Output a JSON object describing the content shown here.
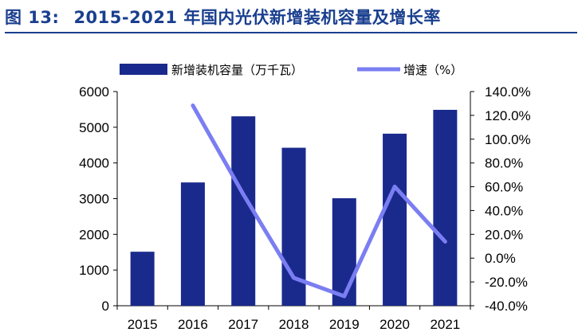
{
  "figure": {
    "label": "图 13:",
    "title": "2015-2021 年国内光伏新增装机容量及增长率"
  },
  "chart_data": {
    "type": "bar",
    "categories": [
      "2015",
      "2016",
      "2017",
      "2018",
      "2019",
      "2020",
      "2021"
    ],
    "series": [
      {
        "name": "新增装机容量（万千瓦）",
        "type": "bar",
        "axis": "left",
        "color": "#1a2a8c",
        "values": [
          1513,
          3454,
          5306,
          4426,
          3011,
          4820,
          5488
        ]
      },
      {
        "name": "增速（%）",
        "type": "line",
        "axis": "right",
        "color": "#7b7ef2",
        "values": [
          null,
          128.3,
          53.6,
          -16.6,
          -32.0,
          60.1,
          13.9
        ]
      }
    ],
    "y_left": {
      "min": 0,
      "max": 6000,
      "step": 1000,
      "ticks": [
        "0",
        "1000",
        "2000",
        "3000",
        "4000",
        "5000",
        "6000"
      ]
    },
    "y_right": {
      "min": -40,
      "max": 140,
      "step": 20,
      "ticks": [
        "-40.0%",
        "-20.0%",
        "0.0%",
        "20.0%",
        "40.0%",
        "60.0%",
        "80.0%",
        "100.0%",
        "120.0%",
        "140.0%"
      ]
    },
    "legend_position": "top",
    "grid": false
  }
}
